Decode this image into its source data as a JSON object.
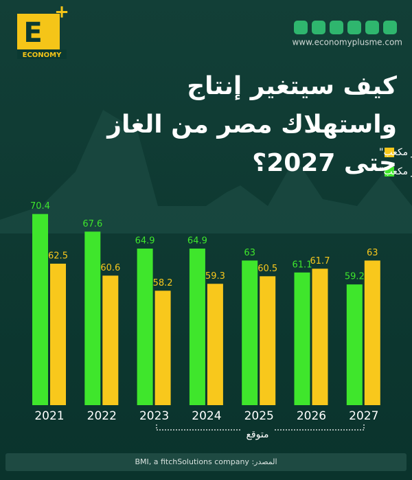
{
  "logo": {
    "letter": "E",
    "plus": "+",
    "text": "ECONOMY"
  },
  "website": "www.economyplusme.com",
  "source": "المصدر: BMI, a fitchSolutions company",
  "chart_data": {
    "type": "bar",
    "title": "كيف سيتغير إنتاج واستهلاك مصر من الغاز حتى 2027؟",
    "categories": [
      "2021",
      "2022",
      "2023",
      "2024",
      "2025",
      "2026",
      "2027"
    ],
    "series": [
      {
        "name": "الإنتاج \"مليار متر مكعب\"",
        "color": "#3fe62c",
        "values": [
          70.4,
          67.6,
          64.9,
          64.9,
          63,
          61.1,
          59.2
        ]
      },
      {
        "name": "الاستهلاك \"مليار متر مكعب\"",
        "color": "#f8c81c",
        "values": [
          62.5,
          60.6,
          58.2,
          59.3,
          60.5,
          61.7,
          63
        ]
      }
    ],
    "ylim": [
      40,
      72
    ],
    "annotation": "متوقع"
  }
}
